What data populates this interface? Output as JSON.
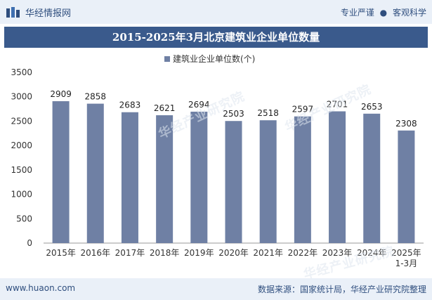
{
  "header": {
    "brand_name": "华经情报网",
    "tagline_left": "专业严谨",
    "tagline_sep": "●",
    "tagline_right": "客观科学"
  },
  "title": "2015-2025年3月北京建筑业企业单位数量",
  "watermark_text": "华经产业研究院",
  "footer": {
    "site": "www.huaon.com",
    "source": "数据来源：国家统计局，华经产业研究院整理"
  },
  "colors": {
    "bar": "#6f80a4",
    "title_bg": "#3a5a8c",
    "band_bg": "#eaf0f8"
  },
  "chart_data": {
    "type": "bar",
    "title": "2015-2025年3月北京建筑业企业单位数量",
    "categories": [
      "2015年",
      "2016年",
      "2017年",
      "2018年",
      "2019年",
      "2020年",
      "2021年",
      "2022年",
      "2023年",
      "2024年",
      "2025年\n1-3月"
    ],
    "series": [
      {
        "name": "建筑业企业单位数(个)",
        "values": [
          2909,
          2858,
          2683,
          2621,
          2694,
          2503,
          2518,
          2597,
          2701,
          2653,
          2308
        ]
      }
    ],
    "yticks": [
      0,
      500,
      1000,
      1500,
      2000,
      2500,
      3000,
      3500
    ],
    "ylim": [
      0,
      3500
    ],
    "legend_position": "top-center",
    "grid": false,
    "xlabel": "",
    "ylabel": ""
  }
}
